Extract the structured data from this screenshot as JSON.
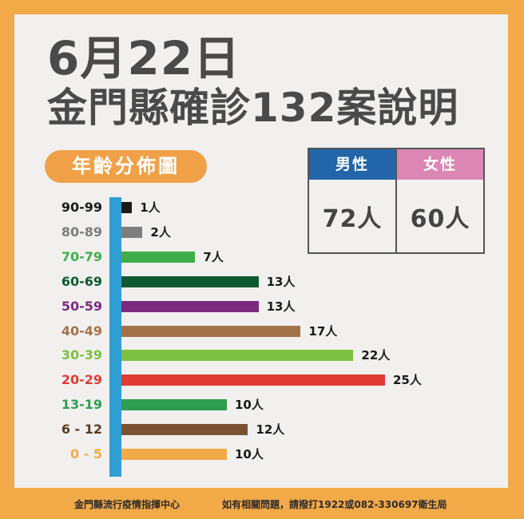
{
  "header": {
    "date": "6月22日",
    "subtitle": "金門縣確診132案說明"
  },
  "section_label": "年齡分佈圖",
  "gender": {
    "male": {
      "label": "男性",
      "value": "72人",
      "color": "#2265a8"
    },
    "female": {
      "label": "女性",
      "value": "60人",
      "color": "#db86b3"
    }
  },
  "colors": {
    "frame": "#f2a948",
    "panel": "#f1f0ef",
    "axis": "#2f9fd3",
    "title": "#4a4a4a"
  },
  "chart_data": {
    "type": "bar",
    "orientation": "horizontal",
    "title": "年齡分佈圖",
    "xlabel": "",
    "ylabel": "",
    "unit": "人",
    "categories": [
      "90-99",
      "80-89",
      "70-79",
      "60-69",
      "50-59",
      "40-49",
      "30-39",
      "20-29",
      "13-19",
      "6 - 12",
      "0 - 5"
    ],
    "values": [
      1,
      2,
      7,
      13,
      13,
      17,
      22,
      25,
      10,
      12,
      10
    ],
    "value_labels": [
      "1人",
      "2人",
      "7人",
      "13人",
      "13人",
      "17人",
      "22人",
      "25人",
      "10人",
      "12人",
      "10人"
    ],
    "bar_colors": [
      "#1a1a1a",
      "#7d7d7d",
      "#3fae49",
      "#0f5a32",
      "#7b2a7d",
      "#a37249",
      "#7dc143",
      "#e03c35",
      "#2d9e4f",
      "#7a5233",
      "#f2a948"
    ],
    "label_colors": [
      "#1a1a1a",
      "#7d7d7d",
      "#3fae49",
      "#0f5a32",
      "#7b2a7d",
      "#a37249",
      "#7dc143",
      "#e03c35",
      "#2d9e4f",
      "#5a3b22",
      "#f2a948"
    ],
    "grid": false,
    "legend": "none",
    "total": 132
  },
  "footer": {
    "left": "金門縣流行疫情指揮中心",
    "right": "如有相關問題，請撥打1922或082-330697衛生局"
  }
}
